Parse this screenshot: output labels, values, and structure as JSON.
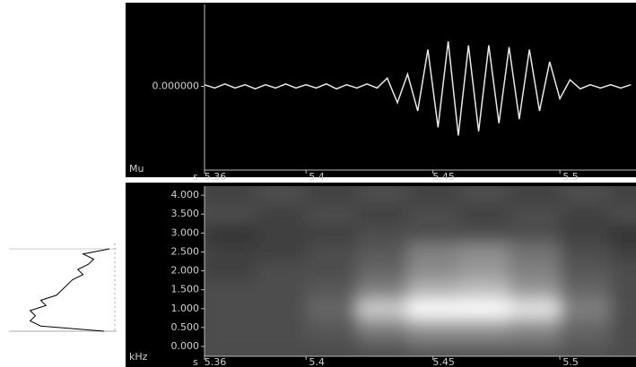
{
  "chart_data": [
    {
      "type": "line",
      "ylabel": "Mu",
      "xlabel": "s",
      "color": "#e8e8e8",
      "x": [
        5.36,
        5.364,
        5.368,
        5.372,
        5.376,
        5.38,
        5.384,
        5.388,
        5.392,
        5.396,
        5.4,
        5.404,
        5.408,
        5.412,
        5.416,
        5.42,
        5.424,
        5.428,
        5.432,
        5.436,
        5.44,
        5.444,
        5.448,
        5.452,
        5.456,
        5.46,
        5.464,
        5.468,
        5.472,
        5.476,
        5.48,
        5.484,
        5.488,
        5.492,
        5.496,
        5.5,
        5.504,
        5.508,
        5.512,
        5.516,
        5.52,
        5.524,
        5.528
      ],
      "values": [
        0.02,
        -0.02,
        0.03,
        -0.02,
        0.02,
        -0.03,
        0.02,
        -0.02,
        0.03,
        -0.02,
        0.02,
        -0.02,
        0.03,
        -0.03,
        0.02,
        -0.02,
        0.03,
        -0.02,
        0.1,
        -0.2,
        0.15,
        -0.3,
        0.45,
        -0.5,
        0.55,
        -0.6,
        0.5,
        -0.55,
        0.5,
        -0.45,
        0.48,
        -0.4,
        0.45,
        -0.3,
        0.3,
        -0.15,
        0.08,
        -0.03,
        0.02,
        -0.02,
        0.02,
        -0.02,
        0.02
      ],
      "xlim": [
        5.36,
        5.53
      ],
      "xticks": [
        5.36,
        5.4,
        5.45,
        5.5
      ],
      "ylim": [
        -1,
        1
      ],
      "yticks": [
        {
          "value": 0,
          "label": "0.000000"
        }
      ]
    },
    {
      "type": "heatmap",
      "ylabel": "kHz",
      "xlabel": "s",
      "x": [
        5.37,
        5.39,
        5.41,
        5.43,
        5.45,
        5.47,
        5.49,
        5.51,
        5.53
      ],
      "y": [
        0,
        0.5,
        1,
        1.5,
        2,
        2.5,
        3,
        3.5,
        4
      ],
      "values": [
        [
          0.3,
          0.3,
          0.3,
          0.35,
          0.4,
          0.4,
          0.4,
          0.35,
          0.3
        ],
        [
          0.3,
          0.3,
          0.35,
          0.5,
          0.6,
          0.6,
          0.55,
          0.4,
          0.3
        ],
        [
          0.3,
          0.3,
          0.4,
          0.8,
          1.0,
          1.0,
          0.9,
          0.5,
          0.3
        ],
        [
          0.3,
          0.3,
          0.35,
          0.5,
          0.7,
          0.75,
          0.6,
          0.4,
          0.3
        ],
        [
          0.25,
          0.3,
          0.3,
          0.4,
          0.55,
          0.6,
          0.5,
          0.35,
          0.3
        ],
        [
          0.25,
          0.25,
          0.3,
          0.35,
          0.5,
          0.55,
          0.45,
          0.3,
          0.25
        ],
        [
          0.2,
          0.25,
          0.25,
          0.3,
          0.3,
          0.3,
          0.3,
          0.25,
          0.2
        ],
        [
          0.3,
          0.25,
          0.3,
          0.25,
          0.3,
          0.25,
          0.3,
          0.25,
          0.3
        ],
        [
          0.25,
          0.3,
          0.25,
          0.3,
          0.25,
          0.3,
          0.25,
          0.3,
          0.25
        ]
      ],
      "xlim": [
        5.36,
        5.53
      ],
      "xticks": [
        5.36,
        5.4,
        5.45,
        5.5
      ],
      "ylim": [
        -0.26,
        4.24
      ],
      "yticks": [
        {
          "value": 0,
          "label": "0.000"
        },
        {
          "value": 0.5,
          "label": "0.500"
        },
        {
          "value": 1,
          "label": "1.000"
        },
        {
          "value": 1.5,
          "label": "1.500"
        },
        {
          "value": 2,
          "label": "2.000"
        },
        {
          "value": 2.5,
          "label": "2.500"
        },
        {
          "value": 3,
          "label": "3.000"
        },
        {
          "value": 3.5,
          "label": "3.500"
        },
        {
          "value": 4,
          "label": "4.000"
        }
      ]
    },
    {
      "type": "profile",
      "color": "#000000",
      "y": [
        0,
        0.25,
        0.5,
        0.75,
        1,
        1.25,
        1.5,
        1.75,
        2,
        2.25,
        2.5,
        2.75,
        3,
        3.25,
        3.5,
        3.75,
        4
      ],
      "values": [
        0.9,
        0.3,
        0.2,
        0.25,
        0.2,
        0.35,
        0.3,
        0.45,
        0.5,
        0.55,
        0.6,
        0.7,
        0.65,
        0.75,
        0.8,
        0.7,
        0.95
      ],
      "xlim": [
        0,
        1
      ],
      "ylim": [
        0,
        4
      ]
    }
  ]
}
